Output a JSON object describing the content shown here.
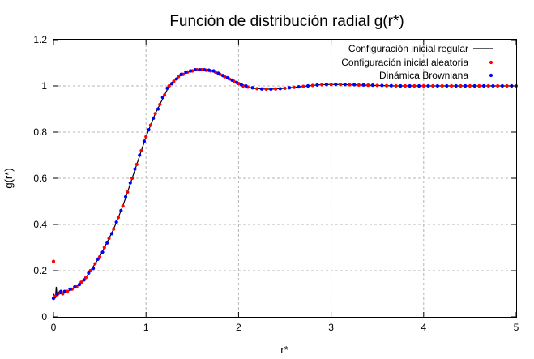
{
  "chart_data": {
    "type": "scatter",
    "title": "Función de distribución radial g(r*)",
    "xlabel": "r*",
    "ylabel": "g(r*)",
    "xlim": [
      0,
      5
    ],
    "ylim": [
      0,
      1.2
    ],
    "xticks": [
      "0",
      "1",
      "2",
      "3",
      "4",
      "5"
    ],
    "yticks": [
      "0",
      "0.2",
      "0.4",
      "0.6",
      "0.8",
      "1",
      "1.2"
    ],
    "grid": true,
    "legend_position": "top-right",
    "series": [
      {
        "name": "Configuración inicial regular",
        "style": "line",
        "color": "#000000",
        "x": [
          0.0,
          0.02,
          0.03,
          0.04,
          0.05,
          0.07,
          0.1,
          0.15,
          0.2,
          0.25,
          0.3,
          0.35,
          0.4,
          0.45,
          0.5,
          0.55,
          0.6,
          0.65,
          0.7,
          0.75,
          0.8,
          0.85,
          0.9,
          0.95,
          1.0,
          1.05,
          1.1,
          1.15,
          1.2,
          1.25,
          1.3,
          1.35,
          1.4,
          1.45,
          1.5,
          1.55,
          1.6,
          1.65,
          1.7,
          1.75,
          1.8,
          1.85,
          1.9,
          1.95,
          2.0,
          2.05,
          2.1,
          2.15,
          2.2,
          2.25,
          2.3,
          2.35,
          2.4,
          2.45,
          2.5,
          2.55,
          2.6,
          2.65,
          2.7,
          2.75,
          2.8,
          2.85,
          2.9,
          2.95,
          3.0,
          3.1,
          3.2,
          3.3,
          3.4,
          3.5,
          3.6,
          3.7,
          3.8,
          3.9,
          4.0,
          4.1,
          4.2,
          4.3,
          4.4,
          4.5,
          4.6,
          4.7,
          4.8,
          4.9,
          5.0
        ],
        "y": [
          0.1,
          0.08,
          0.13,
          0.09,
          0.11,
          0.1,
          0.1,
          0.11,
          0.12,
          0.13,
          0.15,
          0.17,
          0.2,
          0.23,
          0.26,
          0.3,
          0.34,
          0.38,
          0.43,
          0.48,
          0.54,
          0.6,
          0.66,
          0.72,
          0.78,
          0.83,
          0.88,
          0.92,
          0.96,
          1.0,
          1.02,
          1.04,
          1.05,
          1.06,
          1.065,
          1.07,
          1.07,
          1.068,
          1.065,
          1.06,
          1.05,
          1.04,
          1.03,
          1.02,
          1.01,
          1.0,
          0.995,
          0.99,
          0.988,
          0.987,
          0.986,
          0.986,
          0.987,
          0.988,
          0.99,
          0.992,
          0.994,
          0.996,
          0.998,
          1.0,
          1.002,
          1.004,
          1.005,
          1.006,
          1.006,
          1.006,
          1.005,
          1.004,
          1.003,
          1.002,
          1.001,
          1.0,
          1.0,
          1.0,
          1.0,
          1.0,
          1.0,
          1.0,
          1.0,
          1.0,
          1.0,
          1.0,
          1.0,
          1.0,
          1.0
        ]
      },
      {
        "name": "Configuración inicial aleatoria",
        "style": "points",
        "color": "#ff0000",
        "x": [
          0.0,
          0.02,
          0.05,
          0.1,
          0.15,
          0.2,
          0.25,
          0.3,
          0.35,
          0.4,
          0.45,
          0.5,
          0.55,
          0.6,
          0.65,
          0.7,
          0.75,
          0.8,
          0.85,
          0.9,
          0.95,
          1.0,
          1.05,
          1.1,
          1.15,
          1.2,
          1.25,
          1.3,
          1.35,
          1.4,
          1.45,
          1.5,
          1.55,
          1.6,
          1.65,
          1.7,
          1.75,
          1.8,
          1.85,
          1.9,
          1.95,
          2.0,
          2.05,
          2.1,
          2.2,
          2.3,
          2.4,
          2.5,
          2.6,
          2.7,
          2.8,
          2.9,
          3.0,
          3.1,
          3.2,
          3.3,
          3.4,
          3.5,
          3.6,
          3.7,
          3.8,
          3.9,
          4.0,
          4.1,
          4.2,
          4.3,
          4.4,
          4.5,
          4.6,
          4.7,
          4.8,
          4.9,
          5.0
        ],
        "y": [
          0.24,
          0.09,
          0.1,
          0.1,
          0.11,
          0.12,
          0.13,
          0.15,
          0.17,
          0.2,
          0.23,
          0.26,
          0.3,
          0.34,
          0.38,
          0.43,
          0.48,
          0.54,
          0.6,
          0.66,
          0.72,
          0.78,
          0.83,
          0.88,
          0.92,
          0.96,
          1.0,
          1.02,
          1.04,
          1.05,
          1.06,
          1.065,
          1.07,
          1.07,
          1.068,
          1.065,
          1.06,
          1.05,
          1.04,
          1.03,
          1.02,
          1.01,
          1.0,
          0.995,
          0.988,
          0.986,
          0.987,
          0.99,
          0.994,
          0.998,
          1.002,
          1.005,
          1.006,
          1.006,
          1.005,
          1.004,
          1.003,
          1.002,
          1.001,
          1.0,
          1.0,
          1.0,
          1.0,
          1.0,
          1.0,
          1.0,
          1.0,
          1.0,
          1.0,
          1.0,
          1.0,
          1.0,
          1.0
        ]
      },
      {
        "name": "Dinámica Browniana",
        "style": "points",
        "color": "#0000ff",
        "x": [
          0.0,
          0.04,
          0.08,
          0.12,
          0.18,
          0.23,
          0.28,
          0.33,
          0.38,
          0.43,
          0.48,
          0.53,
          0.58,
          0.63,
          0.68,
          0.73,
          0.78,
          0.83,
          0.88,
          0.93,
          0.98,
          1.03,
          1.08,
          1.13,
          1.18,
          1.23,
          1.28,
          1.33,
          1.38,
          1.43,
          1.48,
          1.53,
          1.58,
          1.63,
          1.68,
          1.73,
          1.78,
          1.83,
          1.88,
          1.93,
          1.98,
          2.03,
          2.08,
          2.15,
          2.25,
          2.35,
          2.45,
          2.55,
          2.65,
          2.75,
          2.85,
          2.95,
          3.05,
          3.15,
          3.25,
          3.35,
          3.45,
          3.55,
          3.65,
          3.75,
          3.85,
          3.95,
          4.05,
          4.15,
          4.25,
          4.35,
          4.45,
          4.55,
          4.65,
          4.75,
          4.85,
          4.95
        ],
        "y": [
          0.08,
          0.1,
          0.11,
          0.11,
          0.12,
          0.13,
          0.14,
          0.16,
          0.19,
          0.21,
          0.25,
          0.28,
          0.32,
          0.36,
          0.41,
          0.46,
          0.52,
          0.58,
          0.64,
          0.7,
          0.76,
          0.81,
          0.86,
          0.9,
          0.95,
          0.99,
          1.01,
          1.03,
          1.05,
          1.06,
          1.065,
          1.07,
          1.07,
          1.07,
          1.068,
          1.065,
          1.055,
          1.045,
          1.035,
          1.025,
          1.015,
          1.005,
          1.0,
          0.992,
          0.987,
          0.986,
          0.988,
          0.992,
          0.996,
          1.0,
          1.004,
          1.006,
          1.007,
          1.006,
          1.005,
          1.004,
          1.003,
          1.002,
          1.001,
          1.0,
          1.0,
          1.0,
          1.0,
          1.0,
          1.0,
          1.0,
          1.0,
          1.0,
          1.0,
          1.0,
          1.0,
          1.0
        ]
      }
    ]
  }
}
